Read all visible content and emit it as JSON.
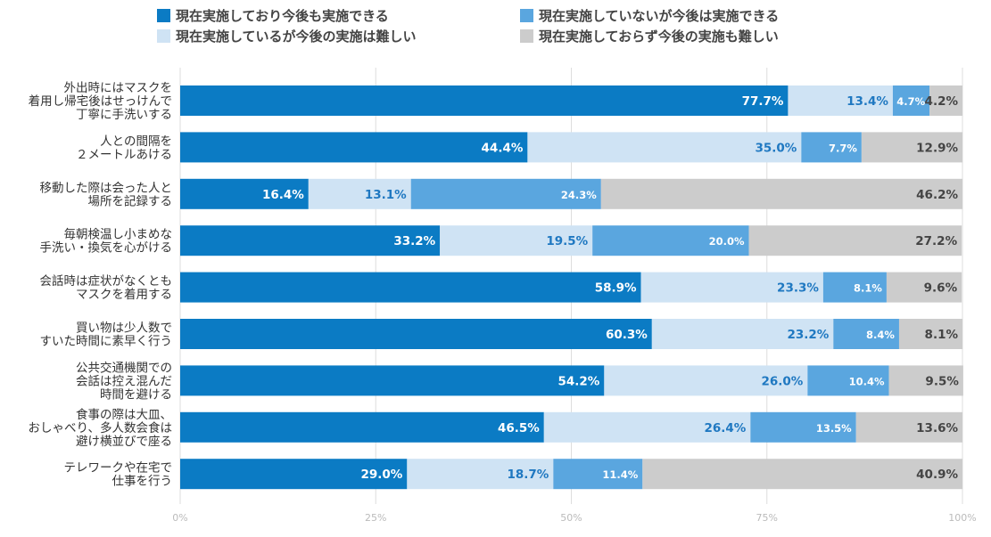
{
  "chart_data": {
    "type": "bar",
    "orientation": "horizontal",
    "stacked": true,
    "categories": [
      "外出時にはマスクを\n着用し帰宅後はせっけんで\n丁寧に手洗いする",
      "人との間隔を\n２メートルあける",
      "移動した際は会った人と\n場所を記録する",
      "毎朝検温し小まめな\n手洗い・換気を心がける",
      "会話時は症状がなくとも\nマスクを着用する",
      "買い物は少人数で\nすいた時間に素早く行う",
      "公共交通機関での\n会話は控え混んだ\n時間を避ける",
      "食事の際は大皿、\nおしゃべり、多人数会食は\n避け横並びで座る",
      "テレワークや在宅で\n仕事を行う"
    ],
    "series": [
      {
        "name": "現在実施しており今後も実施できる",
        "color": "#0b7bc4",
        "values": [
          77.7,
          44.4,
          16.4,
          33.2,
          58.9,
          60.3,
          54.2,
          46.5,
          29.0
        ]
      },
      {
        "name": "現在実施しているが今後の実施は難しい",
        "color": "#cfe3f4",
        "values": [
          13.4,
          35.0,
          13.1,
          19.5,
          23.3,
          23.2,
          26.0,
          26.4,
          18.7
        ]
      },
      {
        "name": "現在実施していないが今後は実施できる",
        "color": "#5aa6df",
        "values": [
          4.7,
          7.7,
          24.3,
          20.0,
          8.1,
          8.4,
          10.4,
          13.5,
          11.4
        ]
      },
      {
        "name": "現在実施しておらず今後の実施も難しい",
        "color": "#cccccc",
        "values": [
          4.2,
          12.9,
          46.2,
          27.2,
          9.6,
          8.1,
          9.5,
          13.6,
          40.9
        ]
      }
    ],
    "xlim": [
      0,
      100
    ],
    "xticks": [
      "0%",
      "25%",
      "50%",
      "75%",
      "100%"
    ],
    "grid": true,
    "legend": "top",
    "label_colors": [
      "#ffffff",
      "#1f78c1",
      "#ffffff",
      "#444444"
    ]
  }
}
